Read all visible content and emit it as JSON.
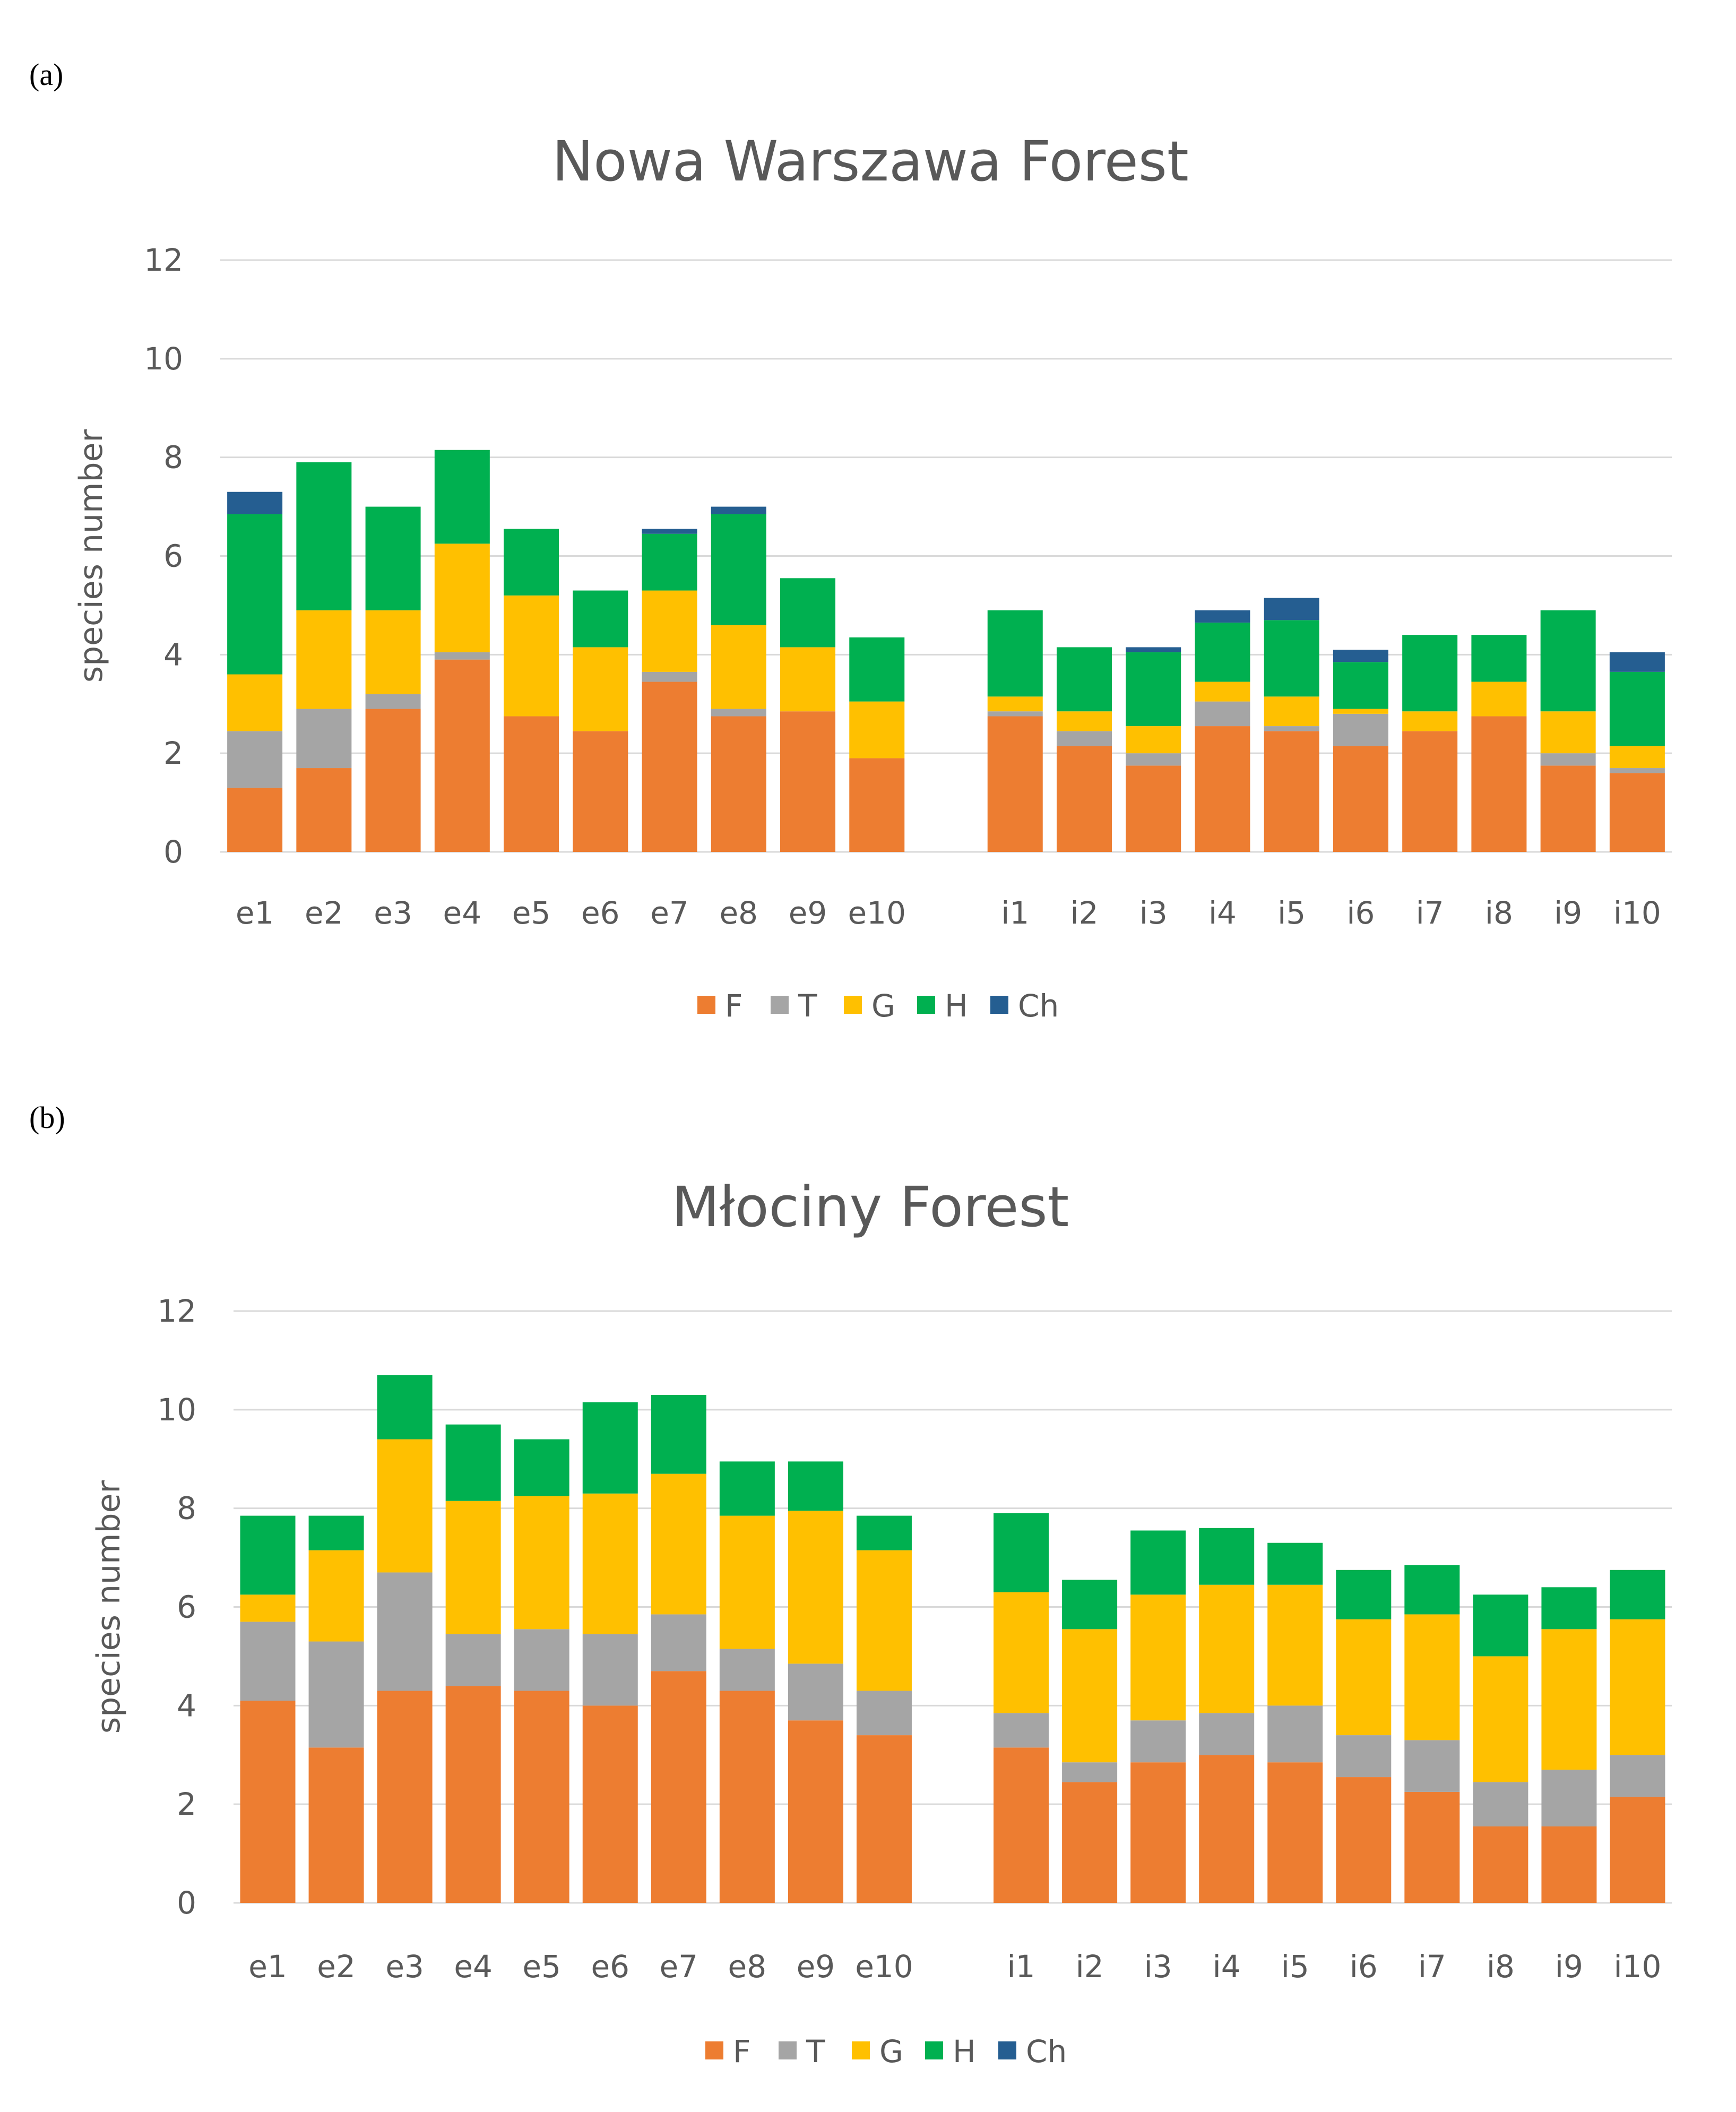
{
  "chart_data": [
    {
      "panel_label": "(a)",
      "type": "bar",
      "stacked": true,
      "title": "Nowa Warszawa Forest",
      "xlabel": "",
      "ylabel": "species number",
      "ylim": [
        0,
        12
      ],
      "yticks": [
        "0",
        "2",
        "4",
        "6",
        "8",
        "10",
        "12"
      ],
      "categories": [
        "e1",
        "e2",
        "e3",
        "e4",
        "e5",
        "e6",
        "e7",
        "e8",
        "e9",
        "e10",
        "i1",
        "i2",
        "i3",
        "i4",
        "i5",
        "i6",
        "i7",
        "i8",
        "i9",
        "i10"
      ],
      "series": [
        {
          "name": "F",
          "color": "#ED7D31",
          "values": [
            1.3,
            1.7,
            2.9,
            3.9,
            2.75,
            2.45,
            3.45,
            2.75,
            2.85,
            1.9,
            2.75,
            2.15,
            1.75,
            2.55,
            2.45,
            2.15,
            2.45,
            2.75,
            1.75,
            1.6
          ]
        },
        {
          "name": "T",
          "color": "#A5A5A5",
          "values": [
            1.15,
            1.2,
            0.3,
            0.15,
            0,
            0,
            0.2,
            0.15,
            0,
            0,
            0.1,
            0.3,
            0.25,
            0.5,
            0.1,
            0.65,
            0,
            0,
            0.25,
            0.1
          ]
        },
        {
          "name": "G",
          "color": "#FFC000",
          "values": [
            1.15,
            2.0,
            1.7,
            2.2,
            2.45,
            1.7,
            1.65,
            1.7,
            1.3,
            1.15,
            0.3,
            0.4,
            0.55,
            0.4,
            0.6,
            0.1,
            0.4,
            0.7,
            0.85,
            0.45
          ]
        },
        {
          "name": "H",
          "color": "#00B050",
          "values": [
            3.25,
            3.0,
            2.1,
            1.9,
            1.35,
            1.15,
            1.15,
            2.25,
            1.4,
            1.3,
            1.75,
            1.3,
            1.5,
            1.2,
            1.55,
            0.95,
            1.55,
            0.95,
            2.05,
            1.5
          ]
        },
        {
          "name": "Ch",
          "color": "#255E91",
          "values": [
            0.45,
            0,
            0,
            0,
            0,
            0,
            0.1,
            0.15,
            0,
            0,
            0,
            0,
            0.1,
            0.25,
            0.45,
            0.25,
            0,
            0,
            0,
            0.4
          ]
        }
      ],
      "legend": "bottom"
    },
    {
      "panel_label": "(b)",
      "type": "bar",
      "stacked": true,
      "title": "Młociny Forest",
      "xlabel": "",
      "ylabel": "species number",
      "ylim": [
        0,
        12
      ],
      "yticks": [
        "0",
        "2",
        "4",
        "6",
        "8",
        "10",
        "12"
      ],
      "categories": [
        "e1",
        "e2",
        "e3",
        "e4",
        "e5",
        "e6",
        "e7",
        "e8",
        "e9",
        "e10",
        "i1",
        "i2",
        "i3",
        "i4",
        "i5",
        "i6",
        "i7",
        "i8",
        "i9",
        "i10"
      ],
      "series": [
        {
          "name": "F",
          "color": "#ED7D31",
          "values": [
            4.1,
            3.15,
            4.3,
            4.4,
            4.3,
            4.0,
            4.7,
            4.3,
            3.7,
            3.4,
            3.15,
            2.45,
            2.85,
            3.0,
            2.85,
            2.55,
            2.25,
            1.55,
            1.55,
            2.15
          ]
        },
        {
          "name": "T",
          "color": "#A5A5A5",
          "values": [
            1.6,
            2.15,
            2.4,
            1.05,
            1.25,
            1.45,
            1.15,
            0.85,
            1.15,
            0.9,
            0.7,
            0.4,
            0.85,
            0.85,
            1.15,
            0.85,
            1.05,
            0.9,
            1.15,
            0.85
          ]
        },
        {
          "name": "G",
          "color": "#FFC000",
          "values": [
            0.55,
            1.85,
            2.7,
            2.7,
            2.7,
            2.85,
            2.85,
            2.7,
            3.1,
            2.85,
            2.45,
            2.7,
            2.55,
            2.6,
            2.45,
            2.35,
            2.55,
            2.55,
            2.85,
            2.75
          ]
        },
        {
          "name": "H",
          "color": "#00B050",
          "values": [
            1.6,
            0.7,
            1.3,
            1.55,
            1.15,
            1.85,
            1.6,
            1.1,
            1.0,
            0.7,
            1.6,
            1.0,
            1.3,
            1.15,
            0.85,
            1.0,
            1.0,
            1.25,
            0.85,
            1.0
          ]
        },
        {
          "name": "Ch",
          "color": "#255E91",
          "values": [
            0,
            0,
            0,
            0,
            0,
            0,
            0,
            0,
            0,
            0,
            0,
            0,
            0,
            0,
            0,
            0,
            0,
            0,
            0,
            0
          ]
        }
      ],
      "legend": "bottom"
    }
  ]
}
